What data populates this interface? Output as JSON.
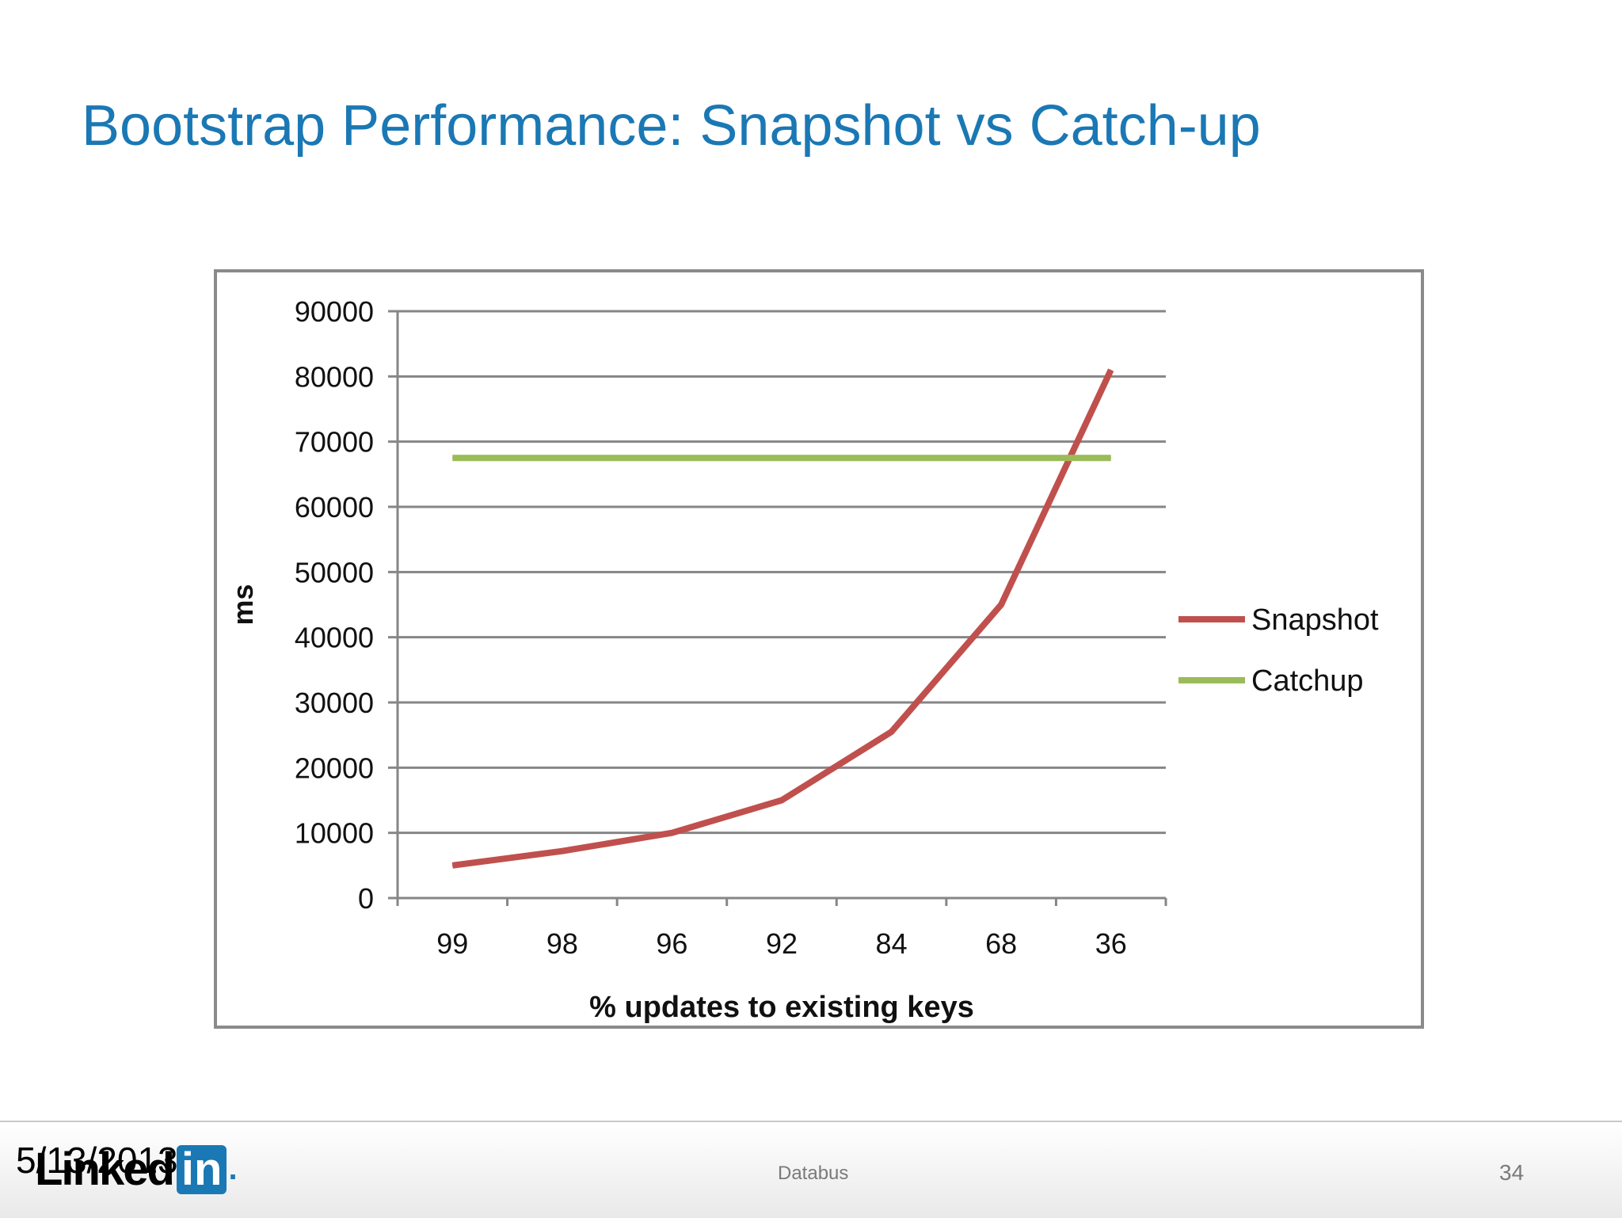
{
  "slide": {
    "title": "Bootstrap Performance: Snapshot vs Catch-up"
  },
  "footer": {
    "date": "5/13/2013",
    "center_text": "Databus",
    "page_number": "34",
    "logo_text": "Linked",
    "logo_box_text": "in",
    "logo_suffix": "."
  },
  "colors": {
    "title": "#1a78b4",
    "snapshot": "#c0504d",
    "catchup": "#9bbb59",
    "gridline": "#868686"
  },
  "chart_data": {
    "type": "line",
    "title": "",
    "xlabel": "% updates to existing keys",
    "ylabel": "ms",
    "categories": [
      "99",
      "98",
      "96",
      "92",
      "84",
      "68",
      "36"
    ],
    "ylim": [
      0,
      90000
    ],
    "yticks": [
      "0",
      "10000",
      "20000",
      "30000",
      "40000",
      "50000",
      "60000",
      "70000",
      "80000",
      "90000"
    ],
    "grid": true,
    "legend_position": "right",
    "series": [
      {
        "name": "Snapshot",
        "color": "#c0504d",
        "values": [
          5000,
          7200,
          10000,
          15000,
          25500,
          45000,
          81000
        ]
      },
      {
        "name": "Catchup",
        "color": "#9bbb59",
        "values": [
          67500,
          67500,
          67500,
          67500,
          67500,
          67500,
          67500
        ]
      }
    ]
  }
}
